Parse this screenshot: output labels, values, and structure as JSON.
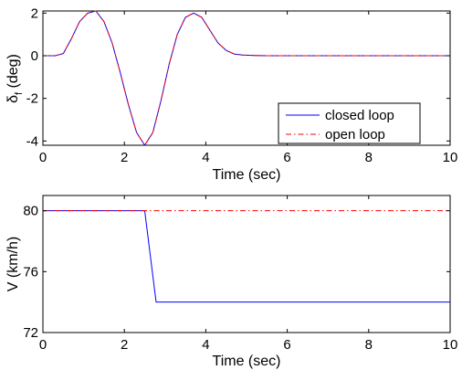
{
  "chart_data": [
    {
      "type": "line",
      "title": "",
      "xlabel": "Time (sec)",
      "ylabel_main": "δ",
      "ylabel_sub": "f",
      "ylabel_unit": " (deg)",
      "xlim": [
        0,
        10
      ],
      "ylim": [
        -4.2,
        2.1
      ],
      "xticks": [
        0,
        2,
        4,
        6,
        8,
        10
      ],
      "yticks": [
        2,
        0,
        -2,
        -4
      ],
      "grid": false,
      "legend_position": "bottom-right",
      "series": [
        {
          "name": "closed loop",
          "color": "#0000ff",
          "dash": "solid",
          "x": [
            0,
            0.3,
            0.5,
            0.7,
            0.9,
            1.1,
            1.3,
            1.5,
            1.7,
            1.9,
            2.1,
            2.3,
            2.5,
            2.7,
            2.9,
            3.1,
            3.3,
            3.5,
            3.7,
            3.9,
            4.1,
            4.3,
            4.5,
            4.7,
            4.9,
            5.2,
            5.5,
            6.0,
            7.0,
            8.0,
            9.0,
            10.0
          ],
          "y": [
            0,
            0,
            0.1,
            0.8,
            1.6,
            2.0,
            2.1,
            1.6,
            0.6,
            -0.8,
            -2.3,
            -3.6,
            -4.2,
            -3.6,
            -2.1,
            -0.4,
            1.0,
            1.8,
            2.0,
            1.8,
            1.2,
            0.6,
            0.25,
            0.08,
            0.03,
            0.01,
            0,
            0,
            0,
            0,
            0,
            0
          ]
        },
        {
          "name": "open loop",
          "color": "#ff0000",
          "dash": "dashdot",
          "x": [
            0,
            0.3,
            0.5,
            0.7,
            0.9,
            1.1,
            1.3,
            1.5,
            1.7,
            1.9,
            2.1,
            2.3,
            2.5,
            2.7,
            2.9,
            3.1,
            3.3,
            3.5,
            3.7,
            3.9,
            4.1,
            4.3,
            4.5,
            4.7,
            4.9,
            5.2,
            5.5,
            6.0,
            7.0,
            8.0,
            9.0,
            10.0
          ],
          "y": [
            0,
            0,
            0.1,
            0.8,
            1.6,
            2.0,
            2.1,
            1.6,
            0.6,
            -0.8,
            -2.3,
            -3.6,
            -4.2,
            -3.6,
            -2.1,
            -0.4,
            1.0,
            1.8,
            2.0,
            1.8,
            1.2,
            0.6,
            0.25,
            0.08,
            0.03,
            0.01,
            0,
            0,
            0,
            0,
            0,
            0
          ]
        }
      ]
    },
    {
      "type": "line",
      "title": "",
      "xlabel": "Time (sec)",
      "ylabel": "V (km/h)",
      "xlim": [
        0,
        10
      ],
      "ylim": [
        72,
        81
      ],
      "xticks": [
        0,
        2,
        4,
        6,
        8,
        10
      ],
      "yticks": [
        80,
        76,
        72
      ],
      "grid": false,
      "series": [
        {
          "name": "closed loop",
          "color": "#0000ff",
          "dash": "solid",
          "x": [
            0,
            2.5,
            2.78,
            10
          ],
          "y": [
            80,
            80,
            74,
            74
          ]
        },
        {
          "name": "open loop",
          "color": "#ff0000",
          "dash": "dashdot",
          "x": [
            0,
            10
          ],
          "y": [
            80,
            80
          ]
        }
      ]
    }
  ]
}
